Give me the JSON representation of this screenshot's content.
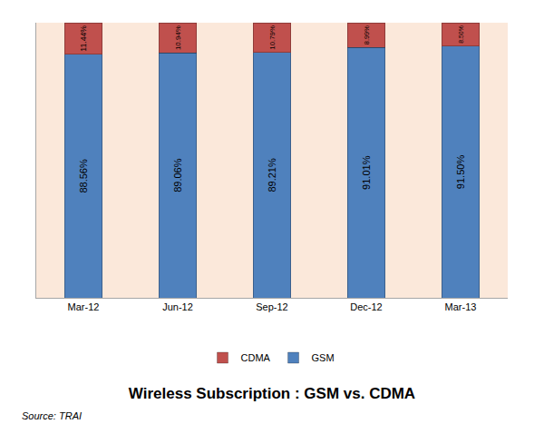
{
  "chart_data": {
    "type": "bar",
    "title": "Wireless Subscription : GSM vs. CDMA",
    "annotations": [
      "Source: TRAI"
    ],
    "categories": [
      "Mar-12",
      "Jun-12",
      "Sep-12",
      "Dec-12",
      "Mar-13"
    ],
    "series": [
      {
        "name": "GSM",
        "color": "#4f81bd",
        "values": [
          88.56,
          89.06,
          89.21,
          91.01,
          91.5
        ],
        "value_labels": [
          "88.56%",
          "89.06%",
          "89.21%",
          "91.01%",
          "91.50%"
        ]
      },
      {
        "name": "CDMA",
        "color": "#c0504d",
        "values": [
          11.44,
          10.94,
          10.79,
          8.99,
          8.5
        ],
        "value_labels": [
          "11.44%",
          "10.94%",
          "10.79%",
          "8.99%",
          "8.50%"
        ]
      }
    ],
    "ylim": [
      0,
      100
    ],
    "stacked": true,
    "data_labels": true,
    "grid": false,
    "legend": "bottom",
    "tick_labels": "x"
  }
}
